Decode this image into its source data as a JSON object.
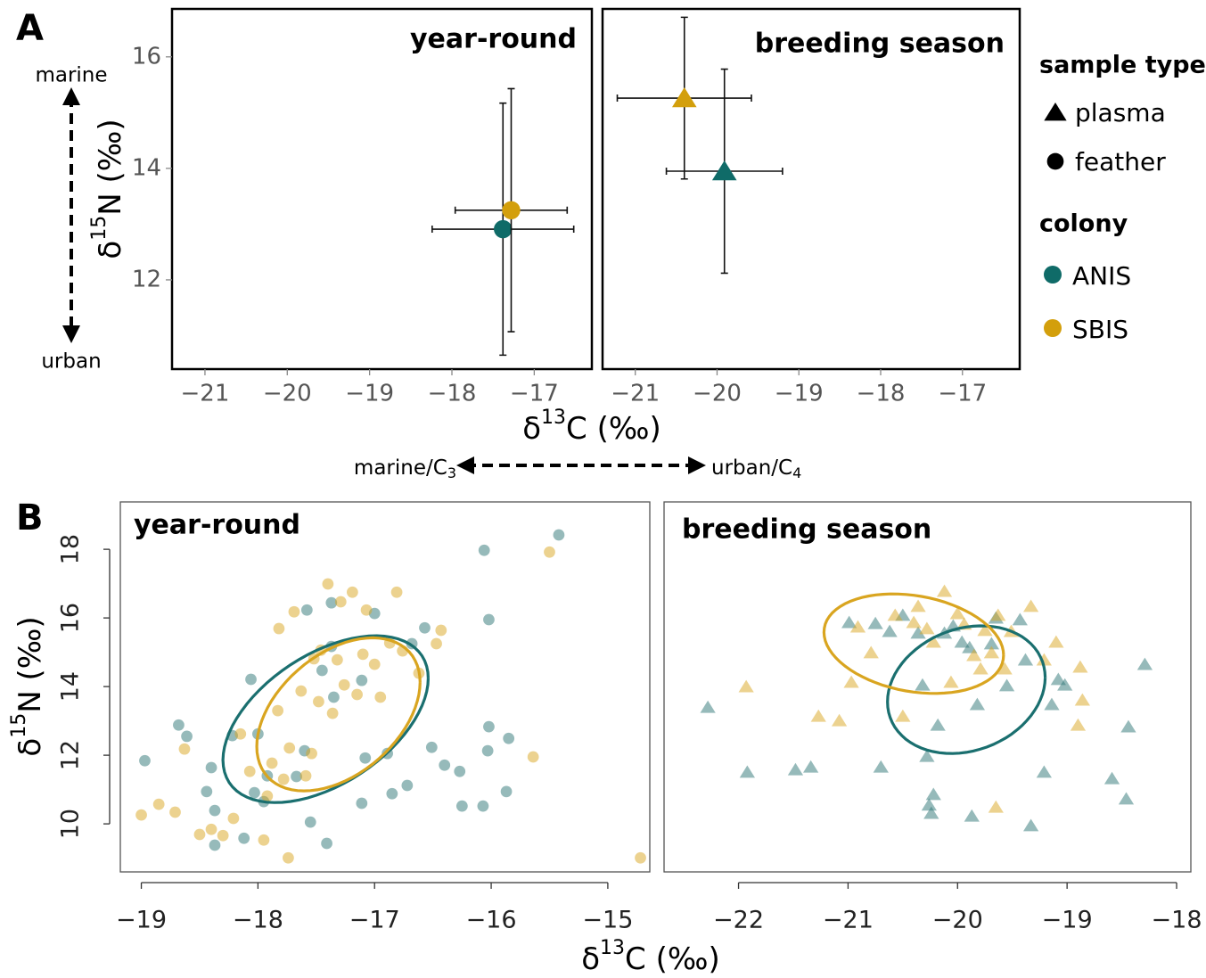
{
  "panels": [
    "A",
    "B"
  ],
  "legend": {
    "sample_type": {
      "title": "sample type",
      "items": [
        {
          "label": "plasma",
          "marker": "triangle"
        },
        {
          "label": "feather",
          "marker": "circle"
        }
      ]
    },
    "colony": {
      "title": "colony"
    }
  },
  "annotations": {
    "y_top": "marine",
    "y_bottom": "urban",
    "x_left": [
      "marine/C",
      "3"
    ],
    "x_right": [
      "urban/C",
      "4"
    ]
  },
  "chart_data": [
    {
      "type": "scatter",
      "title": "year-round",
      "style": "errorbar",
      "ylabel": [
        "δ",
        "15",
        "N (‰)"
      ],
      "xlabel": [
        "δ",
        "13",
        "C (‰)"
      ],
      "xlim": [
        -21.4,
        -16.3
      ],
      "ylim": [
        10.4,
        16.86
      ],
      "xticks": [
        {
          "value": -21,
          "label": "−21"
        },
        {
          "value": -20,
          "label": "−20"
        },
        {
          "value": -19,
          "label": "−19"
        },
        {
          "value": -18,
          "label": "−18"
        },
        {
          "value": -17,
          "label": "−17"
        }
      ],
      "yticks": [
        12,
        14,
        16
      ],
      "series": [
        {
          "name": "ANIS",
          "color": "#0f6b68",
          "marker": "circle",
          "x": [
            -17.38
          ],
          "values": [
            12.91
          ],
          "xerr": [
            0.86
          ],
          "yerr": [
            2.26
          ]
        },
        {
          "name": "SBIS",
          "color": "#d39f0c",
          "marker": "circle",
          "x": [
            -17.28
          ],
          "values": [
            13.25
          ],
          "xerr": [
            0.68
          ],
          "yerr": [
            2.18
          ]
        }
      ]
    },
    {
      "type": "scatter",
      "title": "breeding season",
      "style": "errorbar",
      "xlim": [
        -21.4,
        -16.3
      ],
      "ylim": [
        10.4,
        16.86
      ],
      "xticks": [
        {
          "value": -21,
          "label": "−21"
        },
        {
          "value": -20,
          "label": "−20"
        },
        {
          "value": -19,
          "label": "−19"
        },
        {
          "value": -18,
          "label": "−18"
        },
        {
          "value": -17,
          "label": "−17"
        }
      ],
      "series": [
        {
          "name": "ANIS",
          "color": "#0f6b68",
          "marker": "triangle",
          "x": [
            -19.91
          ],
          "values": [
            13.95
          ],
          "xerr": [
            0.71
          ],
          "yerr": [
            1.83
          ]
        },
        {
          "name": "SBIS",
          "color": "#d39f0c",
          "marker": "triangle",
          "x": [
            -20.4
          ],
          "values": [
            15.26
          ],
          "xerr": [
            0.82
          ],
          "yerr": [
            1.45
          ]
        }
      ]
    },
    {
      "type": "scatter",
      "title": "year-round",
      "style": "cloud",
      "opacity": 0.5,
      "ylabel": [
        "δ",
        "15",
        "N (‰)"
      ],
      "xlabel": [
        "δ",
        "13",
        "C (‰)"
      ],
      "xlim": [
        -19.18,
        -14.64
      ],
      "ylim": [
        8.6,
        19.38
      ],
      "xticks": [
        {
          "value": -19,
          "label": "−19"
        },
        {
          "value": -18,
          "label": "−18"
        },
        {
          "value": -17,
          "label": "−17"
        },
        {
          "value": -16,
          "label": "−16"
        },
        {
          "value": -15,
          "label": "−15"
        }
      ],
      "yticks": [
        10,
        12,
        14,
        16,
        18
      ],
      "series": [
        {
          "name": "ANIS",
          "color": "#2e7676",
          "marker": "circle",
          "x": [
            -18.97,
            -18.68,
            -18.61,
            -18.44,
            -18.4,
            -18.37,
            -18.37,
            -18.12,
            -18.22,
            -18.06,
            -18.0,
            -18.03,
            -17.95,
            -17.92,
            -17.67,
            -17.6,
            -17.55,
            -17.45,
            -17.41,
            -17.37,
            -17.35,
            -17.58,
            -17.37,
            -17.11,
            -17.08,
            -17.11,
            -17.0,
            -16.89,
            -16.85,
            -16.72,
            -16.68,
            -16.57,
            -16.51,
            -16.4,
            -16.27,
            -16.25,
            -16.07,
            -16.06,
            -16.02,
            -16.02,
            -16.03,
            -15.87,
            -15.85,
            -15.42
          ],
          "values": [
            11.84,
            12.88,
            12.55,
            10.94,
            11.64,
            10.39,
            9.38,
            9.58,
            12.57,
            14.21,
            12.62,
            10.91,
            10.65,
            11.4,
            11.38,
            12.13,
            10.05,
            14.47,
            9.43,
            15.17,
            13.69,
            16.23,
            16.44,
            14.18,
            11.92,
            10.6,
            16.13,
            12.05,
            10.88,
            11.12,
            15.25,
            15.71,
            12.23,
            11.71,
            11.53,
            10.52,
            10.52,
            17.97,
            15.95,
            12.83,
            12.13,
            10.94,
            12.49,
            18.42
          ],
          "ellipse": {
            "x": -17.42,
            "y": 13.05,
            "sx": 0.88,
            "sy": 2.43,
            "r": 0.49
          }
        },
        {
          "name": "SBIS",
          "color": "#d9a520",
          "marker": "circle",
          "x": [
            -19.0,
            -18.85,
            -18.71,
            -18.63,
            -18.5,
            -18.4,
            -18.3,
            -18.21,
            -18.15,
            -18.07,
            -17.95,
            -17.92,
            -17.88,
            -17.83,
            -17.82,
            -17.78,
            -17.73,
            -17.74,
            -17.69,
            -17.63,
            -17.59,
            -17.54,
            -17.52,
            -17.48,
            -17.46,
            -17.4,
            -17.36,
            -17.32,
            -17.29,
            -17.26,
            -17.19,
            -17.15,
            -17.1,
            -17.07,
            -17.0,
            -16.95,
            -16.87,
            -16.81,
            -16.76,
            -16.62,
            -16.47,
            -16.43,
            -15.64,
            -15.5,
            -14.72
          ],
          "values": [
            10.26,
            10.57,
            10.34,
            12.18,
            9.69,
            9.84,
            9.66,
            10.16,
            12.62,
            11.53,
            9.53,
            10.81,
            11.77,
            13.3,
            15.69,
            11.3,
            12.21,
            9.01,
            16.18,
            13.87,
            11.4,
            12.05,
            14.81,
            13.56,
            15.06,
            16.99,
            13.22,
            14.78,
            16.47,
            14.05,
            16.75,
            13.77,
            14.94,
            16.23,
            14.65,
            13.69,
            15.27,
            16.75,
            15.04,
            14.39,
            15.25,
            15.64,
            11.95,
            17.92,
            9.01
          ],
          "ellipse": {
            "x": -17.31,
            "y": 13.19,
            "sx": 0.7,
            "sy": 2.23,
            "r": 0.42
          }
        }
      ]
    },
    {
      "type": "scatter",
      "title": "breeding season",
      "style": "cloud",
      "opacity": 0.5,
      "xlim": [
        -22.68,
        -17.87
      ],
      "ylim": [
        8.6,
        19.38
      ],
      "xticks": [
        {
          "value": -22,
          "label": "−22"
        },
        {
          "value": -21,
          "label": "−21"
        },
        {
          "value": -20,
          "label": "−20"
        },
        {
          "value": -19,
          "label": "−19"
        },
        {
          "value": -18,
          "label": "−18"
        }
      ],
      "series": [
        {
          "name": "ANIS",
          "color": "#2e7676",
          "marker": "triangle",
          "x": [
            -22.28,
            -21.92,
            -21.48,
            -21.34,
            -20.99,
            -20.75,
            -20.7,
            -20.62,
            -20.5,
            -20.36,
            -20.32,
            -20.28,
            -20.26,
            -20.24,
            -20.22,
            -20.18,
            -20.12,
            -20.04,
            -19.96,
            -19.89,
            -19.87,
            -19.82,
            -19.69,
            -19.65,
            -19.55,
            -19.43,
            -19.38,
            -19.33,
            -19.21,
            -19.14,
            -19.08,
            -19.02,
            -18.59,
            -18.46,
            -18.44,
            -18.29
          ],
          "values": [
            13.4,
            11.51,
            11.58,
            11.66,
            15.87,
            15.84,
            11.66,
            15.61,
            16.08,
            15.56,
            14.05,
            11.97,
            10.55,
            10.31,
            10.86,
            12.88,
            15.56,
            15.77,
            15.3,
            15.14,
            10.23,
            13.48,
            15.25,
            16.0,
            14.03,
            15.95,
            14.78,
            9.95,
            11.51,
            13.48,
            14.21,
            14.05,
            11.32,
            10.73,
            12.83,
            14.65
          ],
          "ellipse": {
            "x": -19.92,
            "y": 13.91,
            "sx": 0.72,
            "sy": 1.86,
            "r": 0.19
          }
        },
        {
          "name": "SBIS",
          "color": "#d9a520",
          "marker": "triangle",
          "x": [
            -21.93,
            -21.27,
            -21.08,
            -20.97,
            -20.91,
            -20.79,
            -20.57,
            -20.5,
            -20.4,
            -20.36,
            -20.28,
            -20.22,
            -20.12,
            -20.06,
            -20.0,
            -19.94,
            -19.85,
            -19.79,
            -19.75,
            -19.69,
            -19.63,
            -19.57,
            -19.51,
            -19.33,
            -19.21,
            -19.1,
            -18.9,
            -18.88,
            -18.86,
            -19.65
          ],
          "values": [
            14.0,
            13.14,
            13.01,
            14.13,
            15.74,
            14.99,
            16.08,
            13.14,
            15.87,
            16.34,
            15.69,
            15.3,
            16.78,
            14.13,
            16.13,
            15.82,
            14.91,
            14.52,
            15.64,
            14.99,
            16.08,
            14.52,
            15.61,
            16.34,
            14.78,
            15.3,
            12.88,
            14.57,
            13.61,
            10.49
          ],
          "ellipse": {
            "x": -20.4,
            "y": 15.25,
            "sx": 0.82,
            "sy": 1.45,
            "r": -0.23
          }
        }
      ]
    }
  ]
}
